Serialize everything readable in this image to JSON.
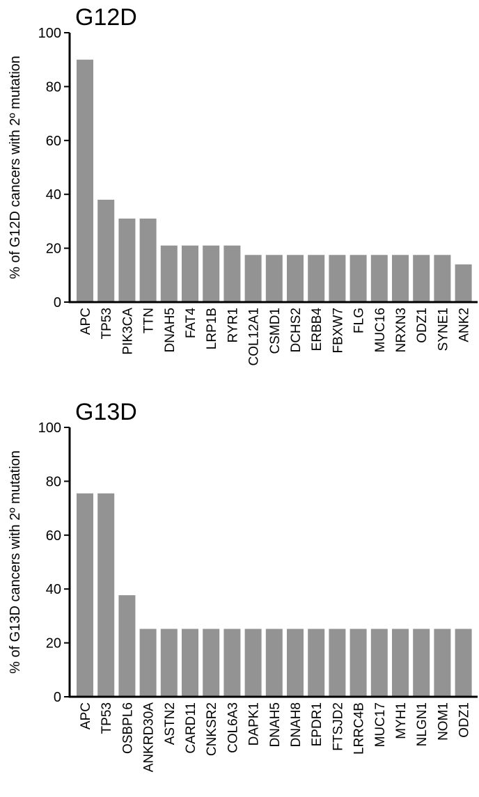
{
  "bar_color": "#939393",
  "axis_color": "#000000",
  "chart_data": [
    {
      "type": "bar",
      "title": "G12D",
      "ylabel": "% of  G12D cancers with 2º mutation",
      "xlabel": "",
      "ylim": [
        0,
        100
      ],
      "yticks": [
        0,
        20,
        40,
        60,
        80,
        100
      ],
      "grid": false,
      "categories": [
        "APC",
        "TP53",
        "PIK3CA",
        "TTN",
        "DNAH5",
        "FAT4",
        "LRP1B",
        "RYR1",
        "COL12A1",
        "CSMD1",
        "DCHS2",
        "ERBB4",
        "FBXW7",
        "FLG",
        "MUC16",
        "NRXN3",
        "ODZ1",
        "SYNE1",
        "ANK2"
      ],
      "values": [
        90,
        38,
        31,
        31,
        21,
        21,
        21,
        21,
        17.5,
        17.5,
        17.5,
        17.5,
        17.5,
        17.5,
        17.5,
        17.5,
        17.5,
        17.5,
        14
      ]
    },
    {
      "type": "bar",
      "title": "G13D",
      "ylabel": "% of  G13D cancers with 2º mutation",
      "xlabel": "",
      "ylim": [
        0,
        100
      ],
      "yticks": [
        0,
        20,
        40,
        60,
        80,
        100
      ],
      "grid": false,
      "categories": [
        "APC",
        "TP53",
        "OSBPL6",
        "ANKRD30A",
        "ASTN2",
        "CARD11",
        "CNKSR2",
        "COL6A3",
        "DAPK1",
        "DNAH5",
        "DNAH8",
        "EPDR1",
        "FTSJD2",
        "LRRC4B",
        "MUC17",
        "MYH1",
        "NLGN1",
        "NOM1",
        "ODZ1"
      ],
      "values": [
        75.5,
        75.5,
        37.7,
        25.2,
        25.2,
        25.2,
        25.2,
        25.2,
        25.2,
        25.2,
        25.2,
        25.2,
        25.2,
        25.2,
        25.2,
        25.2,
        25.2,
        25.2,
        25.2
      ]
    }
  ]
}
